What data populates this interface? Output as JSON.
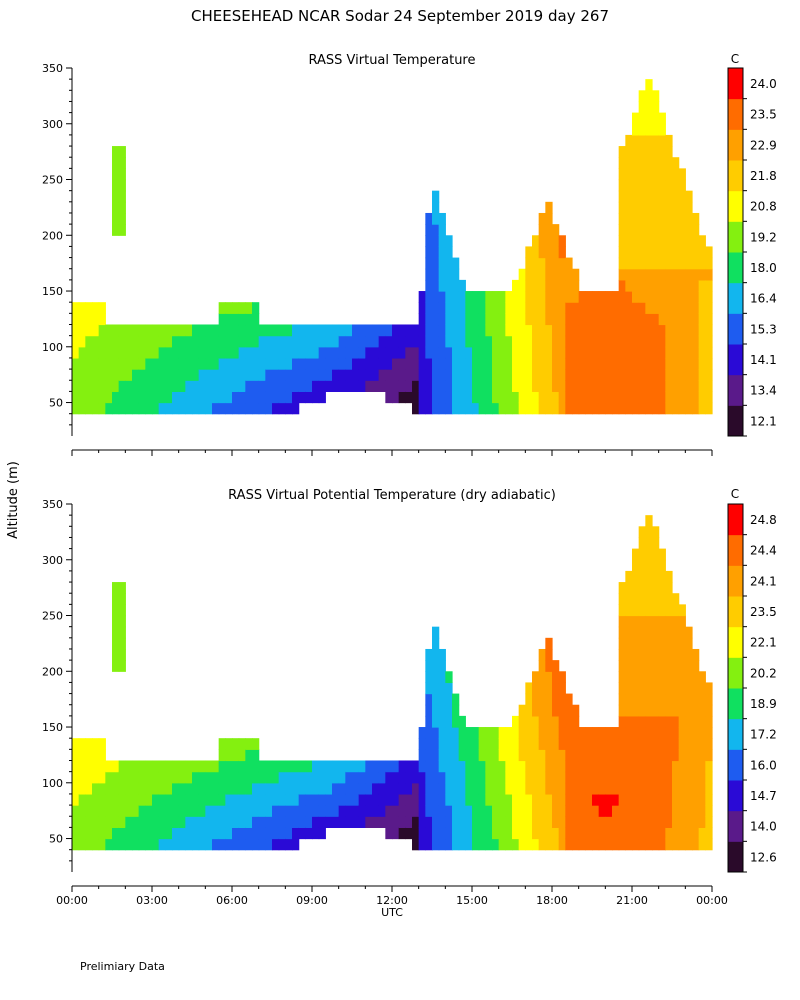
{
  "page": {
    "title": "CHEESEHEAD  NCAR Sodar  24 September 2019  day 267",
    "shared_ylabel": "Altitude (m)",
    "footnote": "Prelimiary Data"
  },
  "chart_data": [
    {
      "type": "heatmap",
      "title": "RASS Virtual Temperature",
      "xlabel": "",
      "ylabel": "Altitude (m)",
      "xlim_hours": [
        0,
        24
      ],
      "ylim": [
        20,
        350
      ],
      "x_ticks": [],
      "y_ticks": [
        50,
        100,
        150,
        200,
        250,
        300,
        350
      ],
      "colorbar_unit": "C",
      "colorbar_levels": [
        "12.1",
        "13.4",
        "14.1",
        "15.3",
        "16.4",
        "18.0",
        "19.2",
        "20.8",
        "21.8",
        "22.9",
        "23.5",
        "24.0"
      ],
      "colors": [
        "#2a0a2a",
        "#5a1a8a",
        "#2a0ad6",
        "#1e5cf0",
        "#12b6ee",
        "#10e060",
        "#84f010",
        "#ffff00",
        "#ffcc00",
        "#ffa000",
        "#ff6c00",
        "#ff0000"
      ],
      "grid": false
    },
    {
      "type": "heatmap",
      "title": "RASS Virtual Potential Temperature (dry adiabatic)",
      "xlabel": "UTC",
      "ylabel": "Altitude (m)",
      "xlim_hours": [
        0,
        24
      ],
      "ylim": [
        20,
        350
      ],
      "x_ticks": [
        "00:00",
        "03:00",
        "06:00",
        "09:00",
        "12:00",
        "15:00",
        "18:00",
        "21:00",
        "00:00"
      ],
      "y_ticks": [
        50,
        100,
        150,
        200,
        250,
        300,
        350
      ],
      "colorbar_unit": "C",
      "colorbar_levels": [
        "12.6",
        "14.0",
        "14.7",
        "16.0",
        "17.2",
        "18.9",
        "20.2",
        "22.1",
        "23.5",
        "24.1",
        "24.4",
        "24.8"
      ],
      "colors": [
        "#2a0a2a",
        "#5a1a8a",
        "#2a0ad6",
        "#1e5cf0",
        "#12b6ee",
        "#10e060",
        "#84f010",
        "#ffff00",
        "#ffcc00",
        "#ffa000",
        "#ff6c00",
        "#ff0000"
      ],
      "grid": false
    }
  ]
}
